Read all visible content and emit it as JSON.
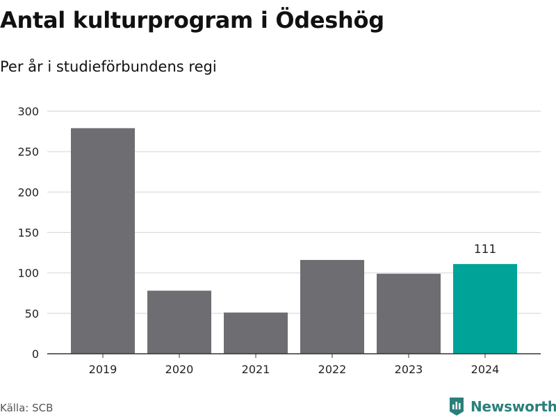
{
  "chart_data": {
    "type": "bar",
    "title": "Antal kulturprogram i Ödeshög",
    "subtitle": "Per år i studieförbundens regi",
    "categories": [
      "2019",
      "2020",
      "2021",
      "2022",
      "2023",
      "2024"
    ],
    "values": [
      279,
      78,
      51,
      116,
      99,
      111
    ],
    "ylim": [
      0,
      300
    ],
    "yticks": [
      0,
      50,
      100,
      150,
      200,
      250,
      300
    ],
    "grid": true,
    "data_labels": [
      {
        "category": "2024",
        "text": "111"
      }
    ],
    "highlight_category": "2024",
    "colors": {
      "bar": "#6e6d72",
      "highlight": "#00a398",
      "grid": "#d9d9d9",
      "axis": "#333333"
    }
  },
  "footer": {
    "source": "Källa: SCB",
    "brand": "Newsworthy",
    "brand_icon": "newsworthy-logo-icon",
    "brand_color": "#2a7f7a"
  }
}
